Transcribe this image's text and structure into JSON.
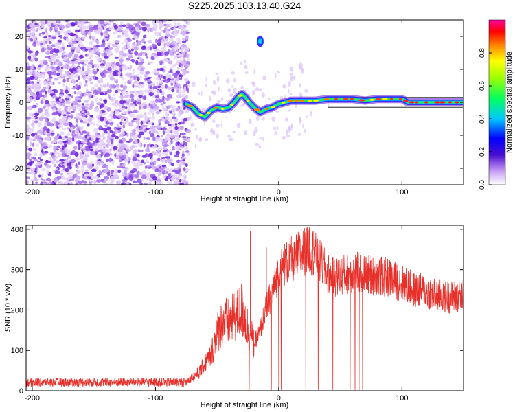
{
  "title": "S225.2025.103.13.40.G24",
  "colors": {
    "snr_line": "#e8302a",
    "bar_band": "#222222"
  },
  "chart_data": [
    {
      "type": "heatmap",
      "xlabel": "Height of straight line (km)",
      "ylabel": "Frequency (Hz)",
      "xlim": [
        -205,
        150
      ],
      "ylim": [
        -25,
        25
      ],
      "xticks": [
        -200,
        -100,
        0,
        100
      ],
      "yticks": [
        -20,
        -10,
        0,
        10,
        20
      ],
      "noise_region_x": [
        -205,
        -73
      ],
      "line_path": [
        [
          -75,
          -0.5
        ],
        [
          -70,
          -1.5
        ],
        [
          -65,
          -3.5
        ],
        [
          -60,
          -4.5
        ],
        [
          -55,
          -2.5
        ],
        [
          -50,
          -1.5
        ],
        [
          -45,
          -2
        ],
        [
          -40,
          -1.5
        ],
        [
          -36,
          0
        ],
        [
          -33,
          1.5
        ],
        [
          -30,
          2.5
        ],
        [
          -27,
          1.5
        ],
        [
          -24,
          0
        ],
        [
          -20,
          -1.5
        ],
        [
          -15,
          -3
        ],
        [
          -10,
          -2
        ],
        [
          -5,
          -1.5
        ],
        [
          0,
          -0.5
        ],
        [
          5,
          0
        ],
        [
          10,
          0.5
        ],
        [
          20,
          0.5
        ],
        [
          30,
          0.5
        ],
        [
          40,
          1
        ],
        [
          50,
          1
        ],
        [
          60,
          1
        ],
        [
          70,
          0.5
        ],
        [
          80,
          1
        ],
        [
          90,
          1
        ],
        [
          100,
          1
        ],
        [
          105,
          0
        ],
        [
          150,
          0
        ]
      ],
      "reference_band_x": [
        40,
        150
      ],
      "spot": [
        -15,
        18.5
      ],
      "colorbar": {
        "label": "Normalized spectral amplitude",
        "range": [
          0,
          1
        ],
        "ticks": [
          "0.0",
          "0.2",
          "0.4",
          "0.6",
          "0.8"
        ]
      }
    },
    {
      "type": "line",
      "xlabel": "Height of straight line (km)",
      "ylabel": "SNR (10 * v/v)",
      "xlim": [
        -205,
        150
      ],
      "ylim": [
        0,
        410
      ],
      "xticks": [
        -200,
        -100,
        0,
        100
      ],
      "yticks": [
        0,
        100,
        200,
        300,
        400
      ],
      "envelope": [
        [
          -205,
          20
        ],
        [
          -100,
          22
        ],
        [
          -75,
          25
        ],
        [
          -65,
          45
        ],
        [
          -55,
          90
        ],
        [
          -50,
          150
        ],
        [
          -45,
          180
        ],
        [
          -40,
          175
        ],
        [
          -35,
          190
        ],
        [
          -30,
          210
        ],
        [
          -25,
          160
        ],
        [
          -20,
          120
        ],
        [
          -15,
          150
        ],
        [
          -10,
          210
        ],
        [
          -5,
          250
        ],
        [
          0,
          300
        ],
        [
          5,
          320
        ],
        [
          10,
          330
        ],
        [
          20,
          350
        ],
        [
          25,
          360
        ],
        [
          30,
          340
        ],
        [
          40,
          295
        ],
        [
          45,
          285
        ],
        [
          50,
          290
        ],
        [
          60,
          300
        ],
        [
          70,
          295
        ],
        [
          80,
          290
        ],
        [
          90,
          285
        ],
        [
          100,
          270
        ],
        [
          110,
          255
        ],
        [
          120,
          250
        ],
        [
          130,
          240
        ],
        [
          140,
          235
        ],
        [
          150,
          240
        ]
      ],
      "spikes_up": [
        [
          -23,
          395
        ],
        [
          -10,
          355
        ],
        [
          25,
          405
        ],
        [
          28,
          395
        ]
      ],
      "dropouts": [
        -24,
        -6,
        0,
        2,
        22,
        32,
        44,
        58,
        62,
        66,
        68
      ]
    }
  ]
}
